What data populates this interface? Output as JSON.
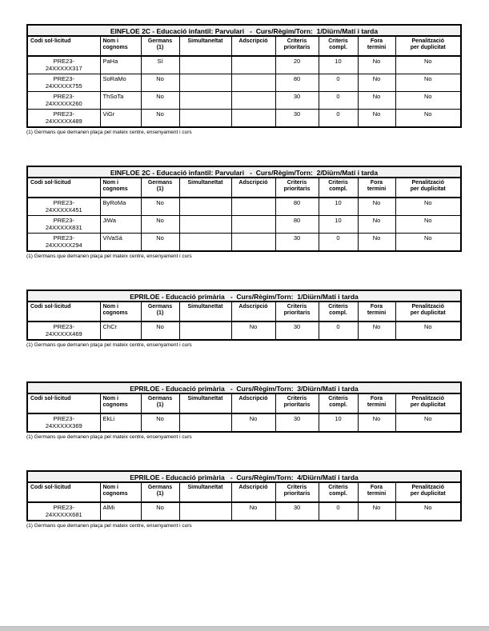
{
  "page": {
    "background_color": "#ffffff",
    "page_edge_color": "#c9c9c9",
    "title_row_bg_color": "#f2f2f2",
    "border_color": "#000000"
  },
  "footnote": "(1) Germans que demanen plaça pel mateix centre, ensenyament i curs",
  "columns": [
    {
      "key": "codi-sollicitud",
      "label": "Codi sol·licitud",
      "align": "left"
    },
    {
      "key": "nom-i-cognoms",
      "label": "Nom i\ncognoms",
      "align": "left"
    },
    {
      "key": "germans",
      "label": "Germans\n(1)",
      "align": "center"
    },
    {
      "key": "simultaneitat",
      "label": "Simultaneïtat",
      "align": "center"
    },
    {
      "key": "adscripcio",
      "label": "Adscripció",
      "align": "center"
    },
    {
      "key": "criteris-prioritaris",
      "label": "Criteris\nprioritaris",
      "align": "center"
    },
    {
      "key": "criteris-compl",
      "label": "Criteris\ncompl.",
      "align": "center"
    },
    {
      "key": "fora-termini",
      "label": "Fora\ntermini",
      "align": "center"
    },
    {
      "key": "penalitzacio-per-duplicitat",
      "label": "Penalització\nper duplicitat",
      "align": "center"
    }
  ],
  "tables": [
    {
      "title": "EINFLOE 2C - Educació infantil: Parvulari   -  Curs/Règim/Torn:  1/Diürn/Matí i tarda",
      "rows": [
        [
          "PRE23-\n24XXXXX317",
          "PaHa",
          "Sí",
          "",
          "",
          "20",
          "10",
          "No",
          "No"
        ],
        [
          "PRE23-\n24XXXXX755",
          "SoRaMo",
          "No",
          "",
          "",
          "80",
          "0",
          "No",
          "No"
        ],
        [
          "PRE23-\n24XXXXX260",
          "ThSoTa",
          "No",
          "",
          "",
          "30",
          "0",
          "No",
          "No"
        ],
        [
          "PRE23-\n24XXXXX489",
          "ViGr",
          "No",
          "",
          "",
          "30",
          "0",
          "No",
          "No"
        ]
      ]
    },
    {
      "title": "EINFLOE 2C - Educació infantil: Parvulari   -  Curs/Règim/Torn:  2/Diürn/Matí i tarda",
      "rows": [
        [
          "PRE23-\n24XXXXX451",
          "ByRoMa",
          "No",
          "",
          "",
          "80",
          "10",
          "No",
          "No"
        ],
        [
          "PRE23-\n24XXXXX831",
          "JiWa",
          "No",
          "",
          "",
          "80",
          "10",
          "No",
          "No"
        ],
        [
          "PRE23-\n24XXXXX294",
          "ViVaSá",
          "No",
          "",
          "",
          "30",
          "0",
          "No",
          "No"
        ]
      ]
    },
    {
      "title": "EPRILOE - Educació primària   -  Curs/Règim/Torn:  1/Diürn/Matí i tarda",
      "rows": [
        [
          "PRE23-\n24XXXXX469",
          "ChCr",
          "No",
          "",
          "No",
          "30",
          "0",
          "No",
          "No"
        ]
      ]
    },
    {
      "title": "EPRILOE - Educació primària   -  Curs/Règim/Torn:  3/Diürn/Matí i tarda",
      "rows": [
        [
          "PRE23-\n24XXXXX369",
          "EkLi",
          "No",
          "",
          "No",
          "30",
          "10",
          "No",
          "No"
        ]
      ]
    },
    {
      "title": "EPRILOE - Educació primària   -  Curs/Règim/Torn:  4/Diürn/Matí i tarda",
      "rows": [
        [
          "PRE23-\n24XXXXX681",
          "AlMi",
          "No",
          "",
          "No",
          "30",
          "0",
          "No",
          "No"
        ]
      ]
    }
  ]
}
